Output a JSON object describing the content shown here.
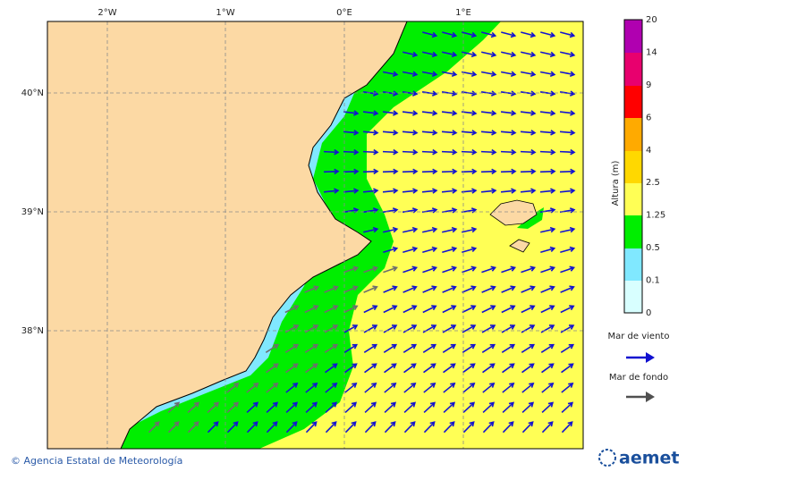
{
  "map": {
    "lon_labels": [
      "2°W",
      "1°W",
      "0°E",
      "1°E"
    ],
    "lat_labels": [
      "40°N",
      "39°N",
      "38°N"
    ]
  },
  "colorbar": {
    "title": "Altura (m)",
    "labels": [
      "20",
      "14",
      "9",
      "6",
      "4",
      "2.5",
      "1.25",
      "0.5",
      "0.1",
      "0"
    ]
  },
  "legend": [
    {
      "label": "Mar de viento"
    },
    {
      "label": "Mar de fondo"
    }
  ],
  "footer": {
    "credit": "© Agencia Estatal de Meteorología",
    "logo": "aemet"
  }
}
